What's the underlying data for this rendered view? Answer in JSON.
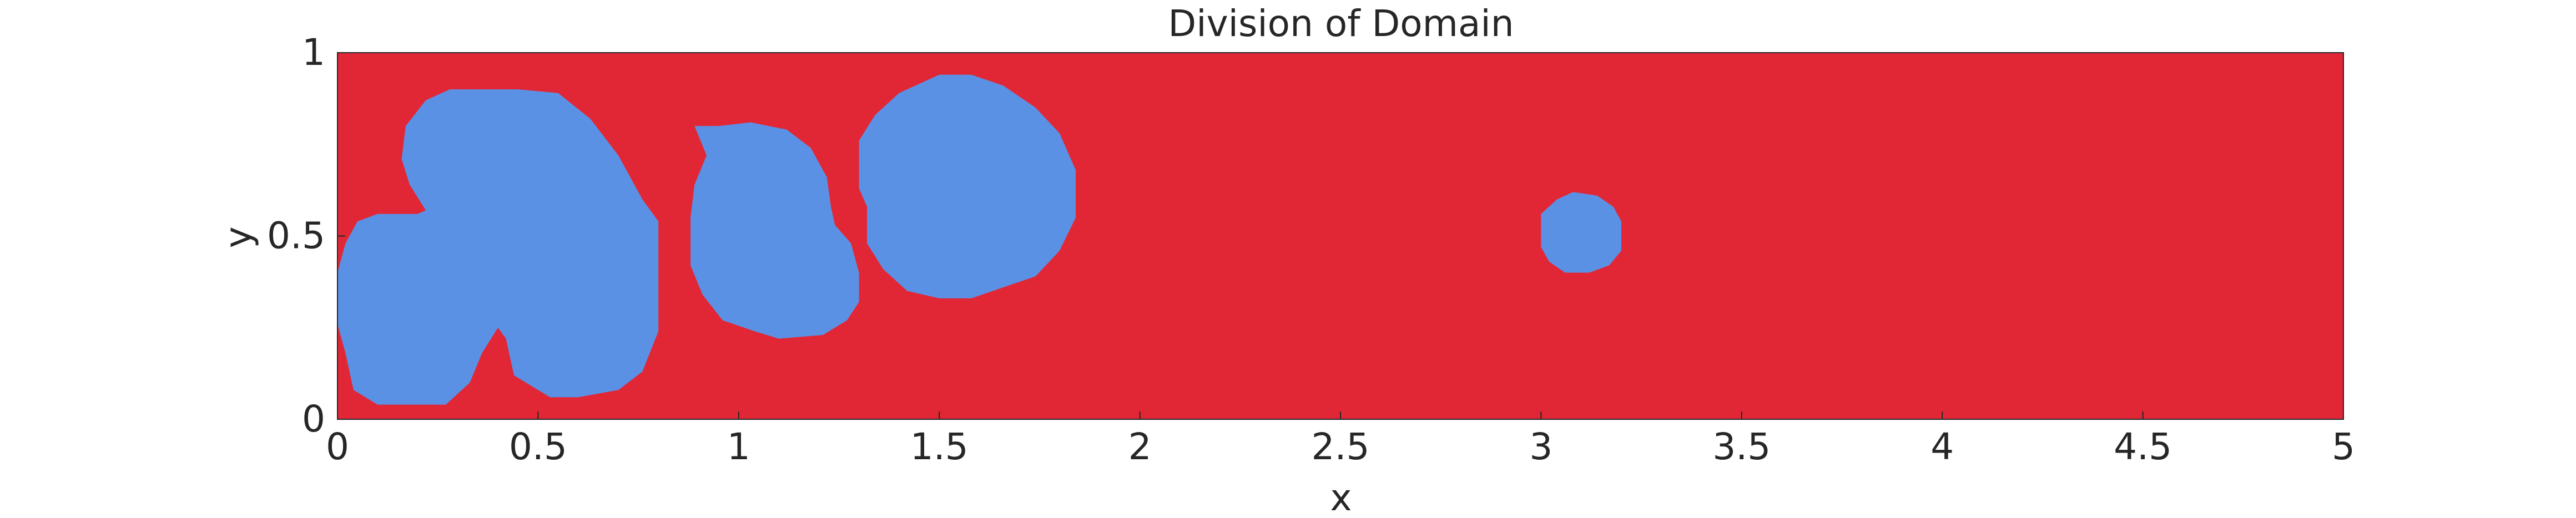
{
  "chart_data": {
    "type": "heatmap",
    "title": "Division of Domain",
    "xlabel": "x",
    "ylabel": "y",
    "xlim": [
      0,
      5
    ],
    "ylim": [
      0,
      1
    ],
    "x_ticks": [
      0,
      0.5,
      1,
      1.5,
      2,
      2.5,
      3,
      3.5,
      4,
      4.5,
      5
    ],
    "x_tick_labels": [
      "0",
      "0.5",
      "1",
      "1.5",
      "2",
      "2.5",
      "3",
      "3.5",
      "4",
      "4.5",
      "5"
    ],
    "y_ticks": [
      0,
      0.5,
      1
    ],
    "y_tick_labels": [
      "0",
      "0.5",
      "1"
    ],
    "grid": false,
    "legend": "none",
    "colors": {
      "background_region": "#E12736",
      "region": "#5B91E5",
      "axis": "#262626"
    },
    "regions": [
      {
        "id": "region-1",
        "boundary": [
          [
            0.0,
            0.4
          ],
          [
            0.02,
            0.48
          ],
          [
            0.05,
            0.54
          ],
          [
            0.1,
            0.56
          ],
          [
            0.2,
            0.56
          ],
          [
            0.22,
            0.57
          ],
          [
            0.18,
            0.64
          ],
          [
            0.16,
            0.71
          ],
          [
            0.17,
            0.8
          ],
          [
            0.22,
            0.87
          ],
          [
            0.28,
            0.9
          ],
          [
            0.45,
            0.9
          ],
          [
            0.55,
            0.89
          ],
          [
            0.63,
            0.82
          ],
          [
            0.7,
            0.72
          ],
          [
            0.76,
            0.6
          ],
          [
            0.8,
            0.54
          ],
          [
            0.8,
            0.24
          ],
          [
            0.76,
            0.13
          ],
          [
            0.7,
            0.08
          ],
          [
            0.6,
            0.06
          ],
          [
            0.53,
            0.06
          ],
          [
            0.44,
            0.12
          ],
          [
            0.42,
            0.22
          ],
          [
            0.4,
            0.25
          ],
          [
            0.36,
            0.18
          ],
          [
            0.33,
            0.1
          ],
          [
            0.27,
            0.04
          ],
          [
            0.1,
            0.04
          ],
          [
            0.04,
            0.08
          ],
          [
            0.02,
            0.18
          ],
          [
            0.0,
            0.26
          ]
        ]
      },
      {
        "id": "region-2",
        "boundary": [
          [
            0.89,
            0.8
          ],
          [
            0.95,
            0.8
          ],
          [
            1.03,
            0.81
          ],
          [
            1.12,
            0.79
          ],
          [
            1.18,
            0.74
          ],
          [
            1.22,
            0.66
          ],
          [
            1.23,
            0.58
          ],
          [
            1.24,
            0.53
          ],
          [
            1.28,
            0.48
          ],
          [
            1.3,
            0.4
          ],
          [
            1.3,
            0.32
          ],
          [
            1.27,
            0.27
          ],
          [
            1.21,
            0.23
          ],
          [
            1.1,
            0.22
          ],
          [
            1.04,
            0.24
          ],
          [
            0.96,
            0.27
          ],
          [
            0.91,
            0.34
          ],
          [
            0.88,
            0.42
          ],
          [
            0.88,
            0.55
          ],
          [
            0.89,
            0.64
          ],
          [
            0.92,
            0.72
          ]
        ]
      },
      {
        "id": "region-3",
        "boundary": [
          [
            1.3,
            0.76
          ],
          [
            1.34,
            0.83
          ],
          [
            1.4,
            0.89
          ],
          [
            1.5,
            0.94
          ],
          [
            1.58,
            0.94
          ],
          [
            1.66,
            0.91
          ],
          [
            1.74,
            0.85
          ],
          [
            1.8,
            0.78
          ],
          [
            1.84,
            0.68
          ],
          [
            1.84,
            0.55
          ],
          [
            1.8,
            0.46
          ],
          [
            1.74,
            0.39
          ],
          [
            1.66,
            0.36
          ],
          [
            1.58,
            0.33
          ],
          [
            1.5,
            0.33
          ],
          [
            1.42,
            0.35
          ],
          [
            1.36,
            0.41
          ],
          [
            1.32,
            0.48
          ],
          [
            1.32,
            0.58
          ],
          [
            1.3,
            0.63
          ]
        ]
      },
      {
        "id": "region-4",
        "boundary": [
          [
            3.0,
            0.56
          ],
          [
            3.04,
            0.6
          ],
          [
            3.08,
            0.62
          ],
          [
            3.14,
            0.61
          ],
          [
            3.18,
            0.58
          ],
          [
            3.2,
            0.54
          ],
          [
            3.2,
            0.46
          ],
          [
            3.17,
            0.42
          ],
          [
            3.12,
            0.4
          ],
          [
            3.06,
            0.4
          ],
          [
            3.02,
            0.43
          ],
          [
            3.0,
            0.47
          ]
        ]
      }
    ]
  }
}
